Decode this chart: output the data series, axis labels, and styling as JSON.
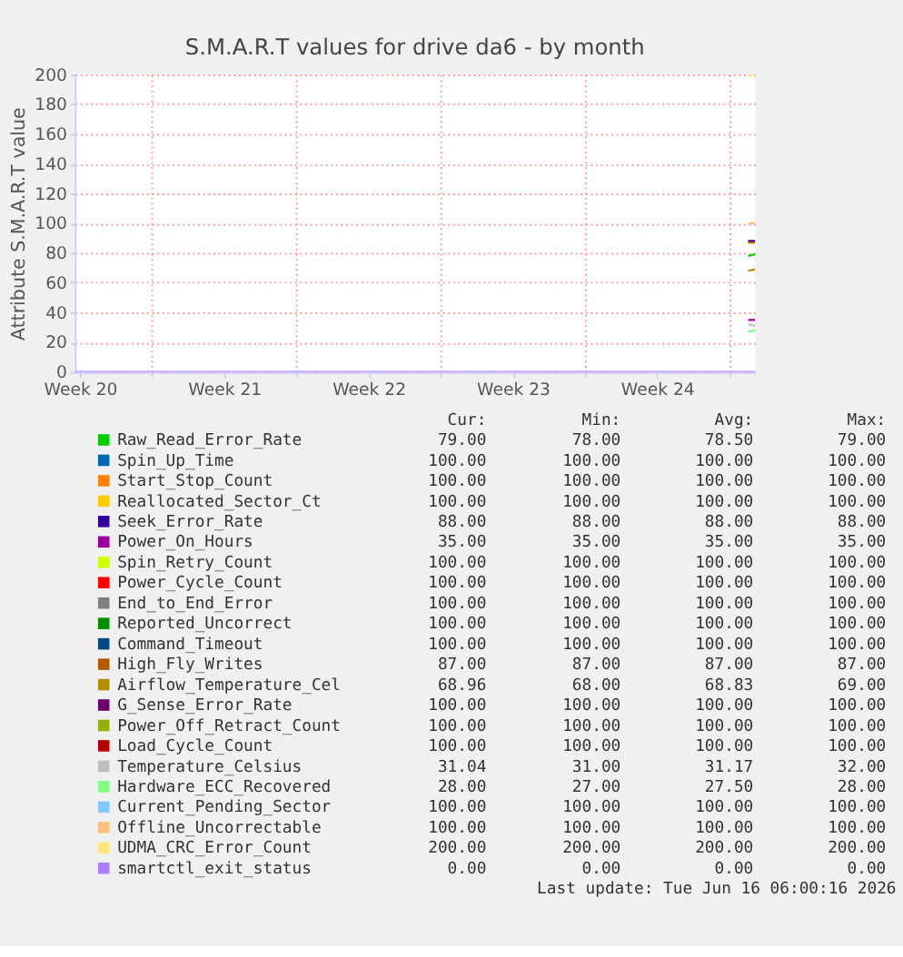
{
  "chart_data": {
    "type": "line",
    "title": "S.M.A.R.T values for drive da6 - by month",
    "ylabel": "Attribute S.M.A.R.T value",
    "xlim": [
      "2026-05-14T06:00",
      "2026-06-16T06:00"
    ],
    "xticks": [
      {
        "value": "2026-05-14T12:00",
        "label": "Week 20"
      },
      {
        "value": "2026-05-18",
        "label": null
      },
      {
        "value": "2026-05-21T12:00",
        "label": "Week 21"
      },
      {
        "value": "2026-05-25",
        "label": null
      },
      {
        "value": "2026-05-28T12:00",
        "label": "Week 22"
      },
      {
        "value": "2026-06-01",
        "label": null
      },
      {
        "value": "2026-06-04T12:00",
        "label": "Week 23"
      },
      {
        "value": "2026-06-08",
        "label": null
      },
      {
        "value": "2026-06-11T12:00",
        "label": "Week 24"
      },
      {
        "value": "2026-06-15",
        "label": null
      }
    ],
    "ylim": [
      0,
      200
    ],
    "yticks": [
      0,
      20,
      40,
      60,
      80,
      100,
      120,
      140,
      160,
      180,
      200
    ],
    "grid": true,
    "legend": "bottom",
    "marker": "none",
    "line_style": "solid",
    "series": [
      {
        "name": "Raw_Read_Error_Rate",
        "color": "#00cc00",
        "x": [
          "2026-06-15T22:00",
          "2026-06-16T06:00"
        ],
        "values": [
          78,
          79
        ]
      },
      {
        "name": "Spin_Up_Time",
        "color": "#0066b3"
      },
      {
        "name": "Start_Stop_Count",
        "color": "#ff8000"
      },
      {
        "name": "Reallocated_Sector_Ct",
        "color": "#ffcc00"
      },
      {
        "name": "Seek_Error_Rate",
        "color": "#330099",
        "x": [
          "2026-06-15T22:00",
          "2026-06-16T06:00"
        ],
        "values": [
          88,
          88
        ]
      },
      {
        "name": "Power_On_Hours",
        "color": "#990099",
        "x": [
          "2026-06-15T22:00",
          "2026-06-16T06:00"
        ],
        "values": [
          35,
          35
        ]
      },
      {
        "name": "Spin_Retry_Count",
        "color": "#ccff00"
      },
      {
        "name": "Power_Cycle_Count",
        "color": "#ff0000"
      },
      {
        "name": "End_to_End_Error",
        "color": "#808080"
      },
      {
        "name": "Reported_Uncorrect",
        "color": "#008f00"
      },
      {
        "name": "Command_Timeout",
        "color": "#00487d"
      },
      {
        "name": "High_Fly_Writes",
        "color": "#b35a00",
        "x": [
          "2026-06-15T22:00",
          "2026-06-16T06:00"
        ],
        "values": [
          87,
          87
        ]
      },
      {
        "name": "Airflow_Temperature_Cel",
        "color": "#b38f00",
        "x": [
          "2026-06-15T22:00",
          "2026-06-16T06:00"
        ],
        "values": [
          68,
          69
        ]
      },
      {
        "name": "G_Sense_Error_Rate",
        "color": "#6b006b"
      },
      {
        "name": "Power_Off_Retract_Count",
        "color": "#8fb300"
      },
      {
        "name": "Load_Cycle_Count",
        "color": "#b30000"
      },
      {
        "name": "Temperature_Celsius",
        "color": "#bebebe",
        "x": [
          "2026-06-15T22:00",
          "2026-06-16T06:00"
        ],
        "values": [
          32,
          31
        ]
      },
      {
        "name": "Hardware_ECC_Recovered",
        "color": "#80ff80",
        "x": [
          "2026-06-15T22:00",
          "2026-06-16T06:00"
        ],
        "values": [
          27,
          28
        ]
      },
      {
        "name": "Current_Pending_Sector",
        "color": "#80c9ff"
      },
      {
        "name": "Offline_Uncorrectable",
        "color": "#ffc080",
        "x": [
          "2026-06-15T22:00",
          "2026-06-16T06:00"
        ],
        "values": [
          100,
          100
        ]
      },
      {
        "name": "UDMA_CRC_Error_Count",
        "color": "#ffe680",
        "x": [
          "2026-06-15T22:00",
          "2026-06-16T06:00"
        ],
        "values": [
          200,
          200
        ]
      },
      {
        "name": "smartctl_exit_status",
        "color": "#aa80ff",
        "x": [
          "2026-05-14T06:00",
          "2026-06-16T06:00"
        ],
        "values": [
          0,
          0
        ]
      }
    ],
    "annotations": [
      "Cur:",
      "Min:",
      "Avg:",
      "Max:",
      "79.00",
      "78.00",
      "78.50",
      "79.00",
      "100.00",
      "100.00",
      "100.00",
      "100.00",
      "100.00",
      "100.00",
      "100.00",
      "100.00",
      "100.00",
      "100.00",
      "100.00",
      "100.00",
      "88.00",
      "88.00",
      "88.00",
      "88.00",
      "35.00",
      "35.00",
      "35.00",
      "35.00",
      "100.00",
      "100.00",
      "100.00",
      "100.00",
      "100.00",
      "100.00",
      "100.00",
      "100.00",
      "100.00",
      "100.00",
      "100.00",
      "100.00",
      "100.00",
      "100.00",
      "100.00",
      "100.00",
      "100.00",
      "100.00",
      "100.00",
      "100.00",
      "87.00",
      "87.00",
      "87.00",
      "87.00",
      "68.96",
      "68.00",
      "68.83",
      "69.00",
      "100.00",
      "100.00",
      "100.00",
      "100.00",
      "100.00",
      "100.00",
      "100.00",
      "100.00",
      "100.00",
      "100.00",
      "100.00",
      "100.00",
      "31.04",
      "31.00",
      "31.17",
      "32.00",
      "28.00",
      "27.00",
      "27.50",
      "28.00",
      "100.00",
      "100.00",
      "100.00",
      "100.00",
      "100.00",
      "100.00",
      "100.00",
      "100.00",
      "200.00",
      "200.00",
      "200.00",
      "200.00",
      "0.00",
      "0.00",
      "0.00",
      "0.00",
      "Last update: Tue Jun 16 06:00:16 2026"
    ]
  }
}
